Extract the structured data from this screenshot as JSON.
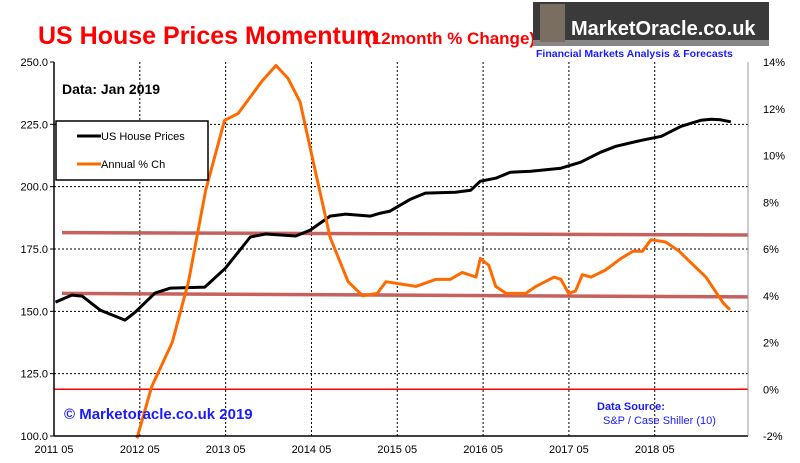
{
  "header": {
    "title": "US House Prices Momentum",
    "subtitle": "(12month % Change)",
    "logo_text": "MarketOracle.co.uk",
    "logo_tagline": "Financial Markets Analysis & Forecasts"
  },
  "annotations": {
    "data_date": "Data: Jan 2019",
    "copyright": "© Marketoracle.co.uk 2019",
    "source_label": "Data Source:",
    "source_value": "S&P / Case Shiller (10)"
  },
  "chart_data": {
    "type": "line",
    "title": "US House Prices Momentum (12month % Change)",
    "xlabel": "",
    "ylabel": "",
    "y2label": "",
    "xlim": [
      2011.333,
      2019.42
    ],
    "ylim": [
      100,
      250
    ],
    "y2lim": [
      -2,
      14
    ],
    "grid": true,
    "legend": {
      "placement": "top-left",
      "entries": [
        "US House Prices",
        "Annual % Ch"
      ]
    },
    "x_ticks": [
      {
        "v": 2011.333,
        "label": "2011 05"
      },
      {
        "v": 2012.333,
        "label": "2012 05"
      },
      {
        "v": 2013.333,
        "label": "2013 05"
      },
      {
        "v": 2014.333,
        "label": "2014 05"
      },
      {
        "v": 2015.333,
        "label": "2015 05"
      },
      {
        "v": 2016.333,
        "label": "2016 05"
      },
      {
        "v": 2017.333,
        "label": "2017 05"
      },
      {
        "v": 2018.333,
        "label": "2018 05"
      }
    ],
    "y_ticks": [
      {
        "v": 100,
        "label": "100.0"
      },
      {
        "v": 125,
        "label": "125.0"
      },
      {
        "v": 150,
        "label": "150.0"
      },
      {
        "v": 175,
        "label": "175.0"
      },
      {
        "v": 200,
        "label": "200.0"
      },
      {
        "v": 225,
        "label": "225.0"
      },
      {
        "v": 250,
        "label": "250.0"
      }
    ],
    "y2_ticks": [
      {
        "v": -2,
        "label": "-2%"
      },
      {
        "v": 0,
        "label": "0%"
      },
      {
        "v": 2,
        "label": "2%"
      },
      {
        "v": 4,
        "label": "4%"
      },
      {
        "v": 6,
        "label": "6%"
      },
      {
        "v": 8,
        "label": "8%"
      },
      {
        "v": 10,
        "label": "10%"
      },
      {
        "v": 12,
        "label": "12%"
      },
      {
        "v": 14,
        "label": "14%"
      }
    ],
    "series": [
      {
        "name": "US House Prices",
        "axis": "left",
        "color": "#000000",
        "x": [
          2011.35,
          2011.54,
          2011.66,
          2011.87,
          2012.16,
          2012.28,
          2012.51,
          2012.69,
          2013.09,
          2013.33,
          2013.62,
          2013.8,
          2014.15,
          2014.32,
          2014.55,
          2014.73,
          2015.02,
          2015.14,
          2015.25,
          2015.49,
          2015.66,
          2016.01,
          2016.19,
          2016.3,
          2016.48,
          2016.65,
          2016.89,
          2017.24,
          2017.47,
          2017.7,
          2017.88,
          2018.18,
          2018.41,
          2018.64,
          2018.87,
          2018.99,
          2019.1,
          2019.22
        ],
        "y": [
          153.7,
          156.5,
          156.1,
          150.5,
          146.5,
          149.7,
          157.3,
          159.3,
          159.7,
          167.3,
          179.8,
          181.0,
          180.2,
          182.6,
          188.2,
          189.0,
          188.2,
          189.4,
          190.2,
          195.0,
          197.4,
          197.8,
          198.6,
          202.2,
          203.4,
          205.8,
          206.2,
          207.4,
          209.8,
          213.8,
          216.2,
          218.6,
          220.2,
          224.2,
          226.6,
          227.0,
          226.8,
          226.0
        ]
      },
      {
        "name": "Annual % Ch",
        "axis": "right",
        "color": "#ff6a00",
        "x": [
          2012.3,
          2012.47,
          2012.71,
          2012.9,
          2013.1,
          2013.32,
          2013.48,
          2013.76,
          2013.92,
          2014.06,
          2014.2,
          2014.38,
          2014.55,
          2014.76,
          2014.93,
          2015.1,
          2015.2,
          2015.55,
          2015.78,
          2015.95,
          2016.09,
          2016.25,
          2016.3,
          2016.4,
          2016.48,
          2016.6,
          2016.83,
          2016.95,
          2017.16,
          2017.24,
          2017.33,
          2017.41,
          2017.49,
          2017.59,
          2017.76,
          2017.94,
          2018.08,
          2018.19,
          2018.29,
          2018.46,
          2018.62,
          2018.73,
          2018.93,
          2019.13,
          2019.21
        ],
        "y": [
          -2.1,
          0.1,
          2.0,
          4.6,
          8.5,
          11.5,
          11.8,
          13.2,
          13.85,
          13.3,
          12.3,
          9.3,
          6.5,
          4.6,
          4.0,
          4.1,
          4.6,
          4.4,
          4.7,
          4.7,
          5.0,
          4.8,
          5.6,
          5.3,
          4.4,
          4.1,
          4.1,
          4.4,
          4.8,
          4.7,
          4.1,
          4.2,
          4.9,
          4.8,
          5.1,
          5.6,
          5.9,
          5.9,
          6.4,
          6.3,
          5.9,
          5.5,
          4.8,
          3.7,
          3.4
        ]
      }
    ],
    "reference_lines": [
      {
        "axis": "right",
        "from": 6.7,
        "to": 6.6,
        "color": "#c0504d"
      },
      {
        "axis": "right",
        "from": 4.1,
        "to": 3.95,
        "color": "#c0504d"
      },
      {
        "axis": "right",
        "from": 0,
        "to": 0,
        "color": "#ff0000"
      }
    ]
  }
}
